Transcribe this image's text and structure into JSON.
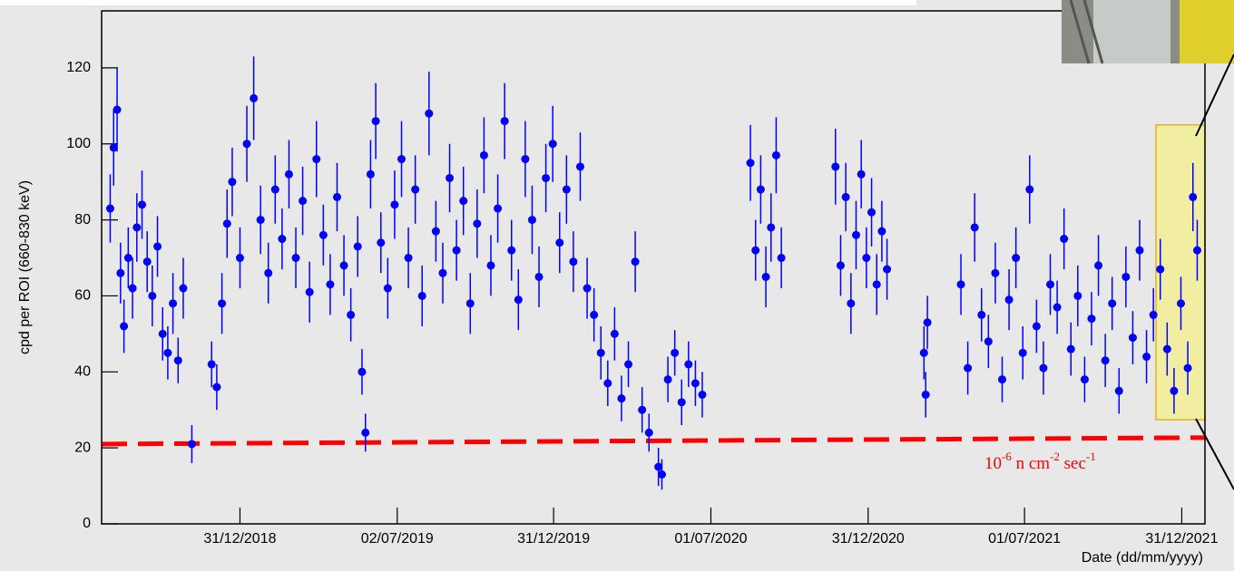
{
  "chart_data": {
    "type": "scatter",
    "y_label": "cpd per ROI (660-830 keV)",
    "x_label": "Date (dd/mm/yyyy)",
    "color": "#0000ff",
    "xlim": [
      "23/07/2018",
      "27/01/2022"
    ],
    "ylim": [
      0,
      135
    ],
    "xticks": [
      "31/12/2018",
      "02/07/2019",
      "31/12/2019",
      "01/07/2020",
      "31/12/2020",
      "01/07/2021",
      "31/12/2021"
    ],
    "yticks": [
      0,
      20,
      40,
      60,
      80,
      100,
      120
    ],
    "x": [
      "02/08/2018",
      "06/08/2018",
      "10/08/2018",
      "14/08/2018",
      "18/08/2018",
      "23/08/2018",
      "28/08/2018",
      "02/09/2018",
      "08/09/2018",
      "14/09/2018",
      "20/09/2018",
      "26/09/2018",
      "02/10/2018",
      "08/10/2018",
      "14/10/2018",
      "20/10/2018",
      "26/10/2018",
      "05/11/2018",
      "28/11/2018",
      "04/12/2018",
      "10/12/2018",
      "16/12/2018",
      "22/12/2018",
      "31/12/2018",
      "08/01/2019",
      "16/01/2019",
      "24/01/2019",
      "02/02/2019",
      "10/02/2019",
      "18/02/2019",
      "26/02/2019",
      "06/03/2019",
      "14/03/2019",
      "22/03/2019",
      "30/03/2019",
      "07/04/2019",
      "15/04/2019",
      "23/04/2019",
      "01/05/2019",
      "09/05/2019",
      "17/05/2019",
      "22/05/2019",
      "26/05/2019",
      "01/06/2019",
      "07/06/2019",
      "13/06/2019",
      "21/06/2019",
      "29/06/2019",
      "07/07/2019",
      "15/07/2019",
      "23/07/2019",
      "31/07/2019",
      "08/08/2019",
      "16/08/2019",
      "24/08/2019",
      "01/09/2019",
      "09/09/2019",
      "17/09/2019",
      "25/09/2019",
      "03/10/2019",
      "11/10/2019",
      "19/10/2019",
      "27/10/2019",
      "04/11/2019",
      "12/11/2019",
      "20/11/2019",
      "28/11/2019",
      "06/12/2019",
      "14/12/2019",
      "22/12/2019",
      "30/12/2019",
      "07/01/2020",
      "15/01/2020",
      "23/01/2020",
      "31/01/2020",
      "08/02/2020",
      "16/02/2020",
      "24/02/2020",
      "03/03/2020",
      "11/03/2020",
      "19/03/2020",
      "27/03/2020",
      "04/04/2020",
      "12/04/2020",
      "20/04/2020",
      "01/05/2020",
      "05/05/2020",
      "12/05/2020",
      "20/05/2020",
      "28/05/2020",
      "05/06/2020",
      "13/06/2020",
      "21/06/2020",
      "16/08/2020",
      "22/08/2020",
      "28/08/2020",
      "03/09/2020",
      "09/09/2020",
      "15/09/2020",
      "21/09/2020",
      "23/11/2020",
      "29/11/2020",
      "05/12/2020",
      "11/12/2020",
      "17/12/2020",
      "23/12/2020",
      "29/12/2020",
      "04/01/2021",
      "10/01/2021",
      "16/01/2021",
      "22/01/2021",
      "06/03/2021",
      "08/03/2021",
      "10/03/2021",
      "18/04/2021",
      "26/04/2021",
      "04/05/2021",
      "12/05/2021",
      "20/05/2021",
      "28/05/2021",
      "05/06/2021",
      "13/06/2021",
      "21/06/2021",
      "29/06/2021",
      "07/07/2021",
      "15/07/2021",
      "23/07/2021",
      "31/07/2021",
      "08/08/2021",
      "16/08/2021",
      "24/08/2021",
      "01/09/2021",
      "09/09/2021",
      "17/09/2021",
      "25/09/2021",
      "03/10/2021",
      "11/10/2021",
      "19/10/2021",
      "27/10/2021",
      "04/11/2021",
      "12/11/2021",
      "20/11/2021",
      "28/11/2021",
      "06/12/2021",
      "14/12/2021",
      "22/12/2021",
      "30/12/2021",
      "07/01/2022",
      "13/01/2022",
      "18/01/2022"
    ],
    "values": [
      83,
      99,
      109,
      66,
      52,
      70,
      62,
      78,
      84,
      69,
      60,
      73,
      50,
      45,
      58,
      43,
      62,
      21,
      42,
      36,
      58,
      79,
      90,
      70,
      100,
      112,
      80,
      66,
      88,
      75,
      92,
      70,
      85,
      61,
      96,
      76,
      63,
      86,
      68,
      55,
      73,
      40,
      24,
      92,
      106,
      74,
      62,
      84,
      96,
      70,
      88,
      60,
      108,
      77,
      66,
      91,
      72,
      85,
      58,
      79,
      97,
      68,
      83,
      106,
      72,
      59,
      96,
      80,
      65,
      91,
      100,
      74,
      88,
      69,
      94,
      62,
      55,
      45,
      37,
      50,
      33,
      42,
      69,
      30,
      24,
      15,
      13,
      38,
      45,
      32,
      42,
      37,
      34,
      95,
      72,
      88,
      65,
      78,
      97,
      70,
      94,
      68,
      86,
      58,
      76,
      92,
      70,
      82,
      63,
      77,
      67,
      45,
      34,
      53,
      63,
      41,
      78,
      55,
      48,
      66,
      38,
      59,
      70,
      45,
      88,
      52,
      41,
      63,
      57,
      75,
      46,
      60,
      38,
      54,
      68,
      43,
      58,
      35,
      65,
      49,
      72,
      44,
      55,
      67,
      46,
      35,
      58,
      41,
      86,
      72
    ],
    "errors": [
      9,
      10,
      11,
      8,
      7,
      8,
      8,
      9,
      9,
      8,
      8,
      8,
      7,
      7,
      8,
      6,
      8,
      5,
      6,
      6,
      8,
      9,
      9,
      8,
      10,
      11,
      9,
      8,
      9,
      8,
      9,
      8,
      9,
      8,
      10,
      8,
      8,
      9,
      8,
      7,
      8,
      6,
      5,
      9,
      10,
      8,
      8,
      9,
      10,
      8,
      9,
      8,
      11,
      8,
      8,
      9,
      8,
      9,
      8,
      9,
      10,
      8,
      9,
      10,
      8,
      8,
      10,
      9,
      8,
      9,
      10,
      8,
      9,
      8,
      9,
      8,
      7,
      7,
      6,
      7,
      6,
      6,
      8,
      6,
      5,
      5,
      4,
      6,
      6,
      6,
      6,
      6,
      6,
      10,
      8,
      9,
      8,
      9,
      10,
      8,
      10,
      8,
      9,
      8,
      9,
      9,
      8,
      9,
      8,
      8,
      8,
      7,
      6,
      7,
      8,
      7,
      9,
      7,
      7,
      8,
      6,
      8,
      8,
      7,
      9,
      7,
      7,
      8,
      7,
      8,
      7,
      8,
      6,
      7,
      8,
      7,
      7,
      6,
      8,
      7,
      8,
      7,
      7,
      8,
      7,
      6,
      7,
      7,
      9,
      8
    ],
    "threshold_line": {
      "x": [
        "23/07/2018",
        "27/01/2022"
      ],
      "values": [
        21,
        22.7
      ],
      "color": "#ff0000"
    },
    "annotation": [
      "10",
      "-6",
      " n cm",
      "-2",
      " sec",
      "-1"
    ],
    "highlight": {
      "x": [
        "01/12/2021",
        "27/01/2022"
      ],
      "values": [
        27.4,
        105
      ],
      "color": "#f5f08a"
    }
  }
}
